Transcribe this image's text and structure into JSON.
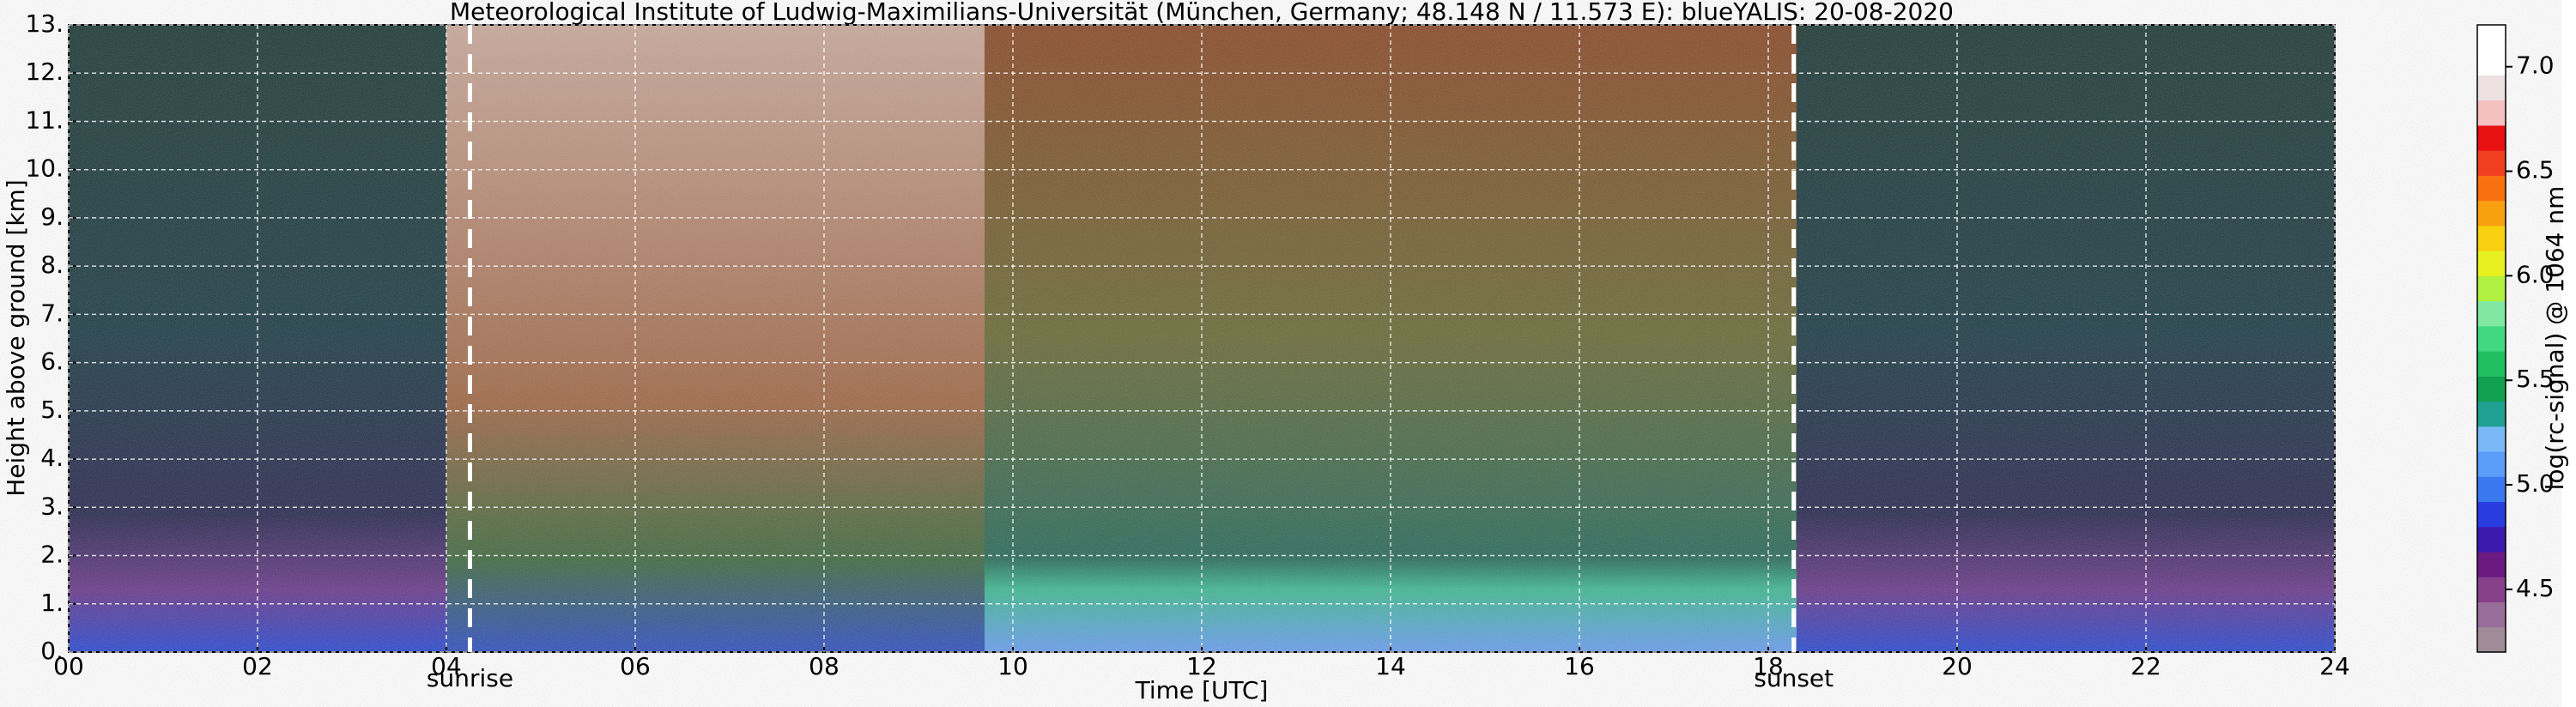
{
  "chart_data": {
    "type": "heatmap",
    "title": "Meteorological Institute of Ludwig-Maximilians-Universität (München, Germany; 48.148 N / 11.573 E):    blueYALIS: 20-08-2020",
    "x_label": "Time [UTC]",
    "y_label": "Height above ground [km]",
    "colorbar_label": "log(rc-signal) @ 1064 nm",
    "xlim": [
      0,
      24
    ],
    "xticks": [
      {
        "value": 0,
        "label": "00"
      },
      {
        "value": 2,
        "label": "02"
      },
      {
        "value": 4,
        "label": "04"
      },
      {
        "value": 6,
        "label": "06"
      },
      {
        "value": 8,
        "label": "08"
      },
      10,
      12,
      14,
      16,
      18,
      20,
      22,
      24
    ],
    "ylim": [
      0,
      13
    ],
    "yticks": [
      {
        "value": 0,
        "label": "0."
      },
      {
        "value": 1,
        "label": "1."
      },
      {
        "value": 2,
        "label": "2."
      },
      {
        "value": 3,
        "label": "3."
      },
      {
        "value": 4,
        "label": "4."
      },
      {
        "value": 5,
        "label": "5."
      },
      {
        "value": 6,
        "label": "6."
      },
      {
        "value": 7,
        "label": "7."
      },
      {
        "value": 8,
        "label": "8."
      },
      {
        "value": 9,
        "label": "9."
      },
      {
        "value": 10,
        "label": "10."
      },
      {
        "value": 11,
        "label": "11."
      },
      {
        "value": 12,
        "label": "12."
      },
      {
        "value": 13,
        "label": "13."
      }
    ],
    "clim": [
      4.2,
      7.2
    ],
    "cticks": [
      4.5,
      {
        "value": 5.0,
        "label": "5.0"
      },
      5.5,
      {
        "value": 6.0,
        "label": "6.0"
      },
      6.5,
      {
        "value": 7.0,
        "label": "7.0"
      }
    ],
    "colormap": [
      "#a08c98",
      "#9a6e9a",
      "#86408a",
      "#6a1a80",
      "#3c1ab0",
      "#2a3ce0",
      "#3a78f0",
      "#5a9cf8",
      "#7ab8f8",
      "#20a090",
      "#10a050",
      "#20c060",
      "#40d880",
      "#80e8a0",
      "#b0f040",
      "#e8f020",
      "#f8d010",
      "#f8a010",
      "#f87010",
      "#f04020",
      "#e81010",
      "#f4c0c0",
      "#ece0e0",
      "#ffffff",
      "#ffffff"
    ],
    "grid": true,
    "annotations": [
      {
        "text": "sunrise",
        "x": 4.25
      },
      {
        "text": "sunset",
        "x": 18.27
      }
    ]
  }
}
